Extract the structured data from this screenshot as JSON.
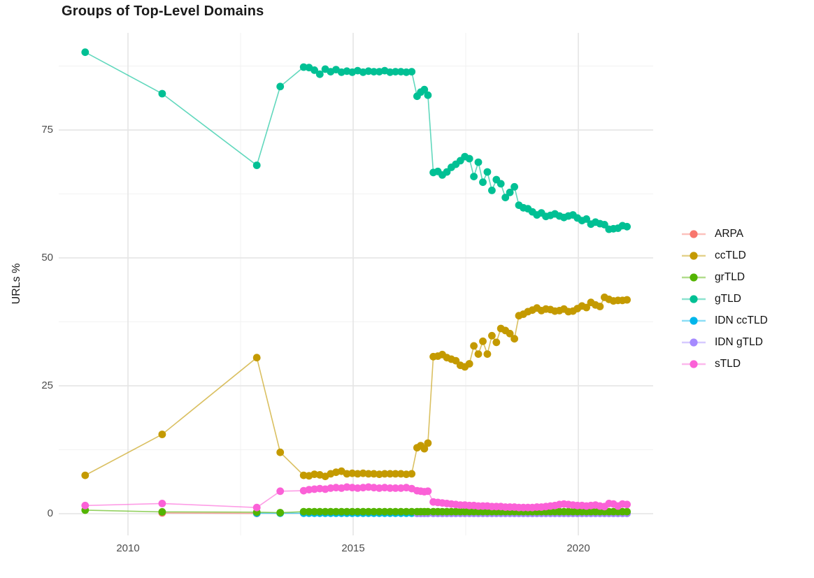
{
  "title": "Groups of Top-Level Domains",
  "axes": {
    "y_label": "URLs %",
    "x_tick_labels": [
      "2010",
      "2015",
      "2020"
    ],
    "y_tick_labels": [
      "0",
      "25",
      "50",
      "75"
    ]
  },
  "legend": {
    "items": [
      "ARPA",
      "ccTLD",
      "grTLD",
      "gTLD",
      "IDN ccTLD",
      "IDN gTLD",
      "sTLD"
    ]
  },
  "chart_data": {
    "type": "line",
    "title": "Groups of Top-Level Domains",
    "xlabel": "",
    "ylabel": "URLs %",
    "xlim": [
      2008.45,
      2021.7
    ],
    "ylim": [
      -4.6,
      94.5
    ],
    "grid": "on",
    "legend_position": "right",
    "x_major": [
      2010,
      2015,
      2020
    ],
    "x_minor": [
      2012.5,
      2017.5
    ],
    "y_major": [
      0,
      25,
      50,
      75
    ],
    "y_minor": [
      12.5,
      37.5,
      62.5,
      87.5
    ],
    "draw_order": [
      "ARPA",
      "ccTLD",
      "IDN ccTLD",
      "IDN gTLD",
      "grTLD",
      "gTLD",
      "sTLD"
    ],
    "x": [
      2009.05,
      2010.76,
      2012.86,
      2013.38,
      2013.9,
      2014.02,
      2014.14,
      2014.26,
      2014.38,
      2014.5,
      2014.62,
      2014.74,
      2014.86,
      2014.98,
      2015.1,
      2015.22,
      2015.34,
      2015.46,
      2015.58,
      2015.7,
      2015.82,
      2015.94,
      2016.06,
      2016.18,
      2016.3,
      2016.42,
      2016.5,
      2016.58,
      2016.66,
      2016.78,
      2016.88,
      2016.98,
      2017.08,
      2017.18,
      2017.28,
      2017.38,
      2017.48,
      2017.58,
      2017.68,
      2017.78,
      2017.88,
      2017.98,
      2018.08,
      2018.18,
      2018.28,
      2018.38,
      2018.48,
      2018.58,
      2018.68,
      2018.78,
      2018.88,
      2018.98,
      2019.08,
      2019.18,
      2019.28,
      2019.38,
      2019.48,
      2019.58,
      2019.68,
      2019.78,
      2019.88,
      2019.98,
      2020.08,
      2020.18,
      2020.28,
      2020.38,
      2020.48,
      2020.58,
      2020.68,
      2020.78,
      2020.88,
      2020.98,
      2021.08
    ],
    "series": [
      {
        "name": "ARPA",
        "color": "#F8766D",
        "values": [
          null,
          0.15,
          0.05,
          null,
          null,
          null,
          null,
          null,
          null,
          null,
          null,
          null,
          null,
          null,
          null,
          null,
          null,
          null,
          null,
          null,
          null,
          null,
          null,
          null,
          null,
          null,
          null,
          null,
          null,
          null,
          null,
          null,
          null,
          null,
          null,
          null,
          null,
          null,
          null,
          null,
          null,
          null,
          null,
          null,
          null,
          null,
          null,
          null,
          null,
          null,
          null,
          null,
          null,
          null,
          null,
          null,
          null,
          null,
          null,
          null,
          null,
          null,
          null,
          null,
          null,
          null,
          null,
          null,
          null,
          null,
          null,
          null,
          null
        ]
      },
      {
        "name": "ccTLD",
        "color": "#C49A00",
        "values": [
          7.5,
          15.5,
          30.5,
          12.0,
          7.5,
          7.4,
          7.7,
          7.6,
          7.3,
          7.8,
          8.1,
          8.3,
          7.8,
          7.9,
          7.8,
          7.9,
          7.8,
          7.8,
          7.7,
          7.8,
          7.8,
          7.8,
          7.8,
          7.7,
          7.8,
          12.9,
          13.3,
          12.7,
          13.8,
          30.7,
          30.8,
          31.1,
          30.5,
          30.2,
          29.9,
          29.0,
          28.7,
          29.3,
          32.8,
          31.2,
          33.7,
          31.2,
          34.8,
          33.5,
          36.2,
          35.8,
          35.2,
          34.2,
          38.7,
          39.0,
          39.5,
          39.8,
          40.2,
          39.7,
          40.0,
          39.9,
          39.6,
          39.7,
          40.0,
          39.5,
          39.6,
          40.1,
          40.6,
          40.3,
          41.3,
          40.8,
          40.5,
          42.3,
          41.9,
          41.6,
          41.7,
          41.7,
          41.8
        ]
      },
      {
        "name": "grTLD",
        "color": "#53B400",
        "values": [
          0.7,
          0.35,
          0.3,
          0.2,
          0.4,
          0.4,
          0.4,
          0.4,
          0.4,
          0.4,
          0.4,
          0.4,
          0.4,
          0.4,
          0.4,
          0.4,
          0.4,
          0.4,
          0.4,
          0.4,
          0.4,
          0.4,
          0.4,
          0.4,
          0.4,
          0.4,
          0.4,
          0.4,
          0.4,
          0.4,
          0.4,
          0.4,
          0.4,
          0.4,
          0.4,
          0.4,
          0.4,
          0.4,
          0.4,
          0.4,
          0.4,
          0.4,
          0.4,
          0.4,
          0.4,
          0.4,
          0.4,
          0.4,
          0.4,
          0.4,
          0.4,
          0.4,
          0.4,
          0.4,
          0.4,
          0.4,
          0.4,
          0.4,
          0.4,
          0.4,
          0.4,
          0.4,
          0.4,
          0.4,
          0.4,
          0.4,
          0.4,
          0.4,
          0.4,
          0.4,
          0.4,
          0.4,
          0.4
        ]
      },
      {
        "name": "gTLD",
        "color": "#00C094",
        "values": [
          90.2,
          82.1,
          68.1,
          83.5,
          87.3,
          87.2,
          86.7,
          85.9,
          86.9,
          86.4,
          86.8,
          86.3,
          86.5,
          86.3,
          86.6,
          86.3,
          86.5,
          86.4,
          86.4,
          86.6,
          86.3,
          86.4,
          86.4,
          86.3,
          86.4,
          81.6,
          82.4,
          82.9,
          81.8,
          66.7,
          66.9,
          66.2,
          66.8,
          67.7,
          68.3,
          69.0,
          69.8,
          69.4,
          65.9,
          68.7,
          64.8,
          66.8,
          63.2,
          65.3,
          64.5,
          61.8,
          62.8,
          63.9,
          60.3,
          59.8,
          59.6,
          59.0,
          58.4,
          58.8,
          58.1,
          58.3,
          58.6,
          58.2,
          57.9,
          58.2,
          58.4,
          57.8,
          57.3,
          57.6,
          56.6,
          57.0,
          56.7,
          56.5,
          55.6,
          55.7,
          55.8,
          56.3,
          56.1
        ]
      },
      {
        "name": "IDN ccTLD",
        "color": "#00B6EB",
        "values": [
          null,
          null,
          0.1,
          0.1,
          0.1,
          0.1,
          0.1,
          0.1,
          0.1,
          0.1,
          0.1,
          0.1,
          0.1,
          0.1,
          0.1,
          0.1,
          0.1,
          0.1,
          0.1,
          0.1,
          0.1,
          0.1,
          0.1,
          0.1,
          0.1,
          0.1,
          0.1,
          0.1,
          0.1,
          0.1,
          0.1,
          0.1,
          0.1,
          0.1,
          0.1,
          0.1,
          0.1,
          0.1,
          0.1,
          0.1,
          0.1,
          0.1,
          0.1,
          0.1,
          0.1,
          0.1,
          0.1,
          0.1,
          0.1,
          0.1,
          0.1,
          0.1,
          0.1,
          0.1,
          0.1,
          0.1,
          0.1,
          0.1,
          0.1,
          0.1,
          0.1,
          0.1,
          0.1,
          0.1,
          0.1,
          0.1,
          0.1,
          0.1,
          0.1,
          0.1,
          0.1,
          0.1,
          0.1
        ]
      },
      {
        "name": "IDN gTLD",
        "color": "#A58AFF",
        "values": [
          null,
          null,
          null,
          null,
          null,
          null,
          null,
          null,
          null,
          null,
          null,
          null,
          null,
          null,
          null,
          null,
          null,
          null,
          null,
          null,
          null,
          null,
          null,
          null,
          null,
          0.05,
          0.05,
          0.05,
          0.05,
          0.05,
          0.05,
          0.05,
          0.05,
          0.05,
          0.05,
          0.05,
          0.05,
          0.05,
          0.05,
          0.05,
          0.05,
          0.05,
          0.05,
          0.05,
          0.05,
          0.05,
          0.05,
          0.05,
          0.05,
          0.05,
          0.05,
          0.05,
          0.05,
          0.05,
          0.05,
          0.05,
          0.05,
          0.05,
          0.05,
          0.05,
          0.05,
          0.05,
          0.05,
          0.05,
          0.05,
          0.05,
          0.05,
          0.05,
          0.05,
          0.05,
          0.05,
          0.05,
          0.05
        ]
      },
      {
        "name": "sTLD",
        "color": "#FB61D7",
        "values": [
          1.6,
          2.0,
          1.2,
          4.4,
          4.5,
          4.7,
          4.8,
          4.9,
          4.8,
          5.0,
          5.1,
          5.0,
          5.2,
          5.1,
          5.0,
          5.1,
          5.2,
          5.1,
          5.0,
          5.1,
          5.0,
          5.0,
          5.0,
          5.1,
          4.9,
          4.5,
          4.4,
          4.3,
          4.4,
          2.3,
          2.2,
          2.1,
          2.0,
          1.9,
          1.8,
          1.7,
          1.7,
          1.6,
          1.6,
          1.5,
          1.5,
          1.5,
          1.4,
          1.4,
          1.4,
          1.3,
          1.3,
          1.3,
          1.2,
          1.2,
          1.2,
          1.2,
          1.3,
          1.3,
          1.4,
          1.5,
          1.6,
          1.8,
          1.9,
          1.8,
          1.7,
          1.6,
          1.6,
          1.5,
          1.6,
          1.7,
          1.5,
          1.4,
          2.0,
          1.9,
          1.5,
          1.9,
          1.8
        ]
      }
    ]
  },
  "colors": {
    "background": "#ffffff",
    "grid_major": "#e4e4e4",
    "grid_minor": "#f2f2f2",
    "tick_label": "#4d4d4d",
    "text": "#1a1a1a"
  }
}
